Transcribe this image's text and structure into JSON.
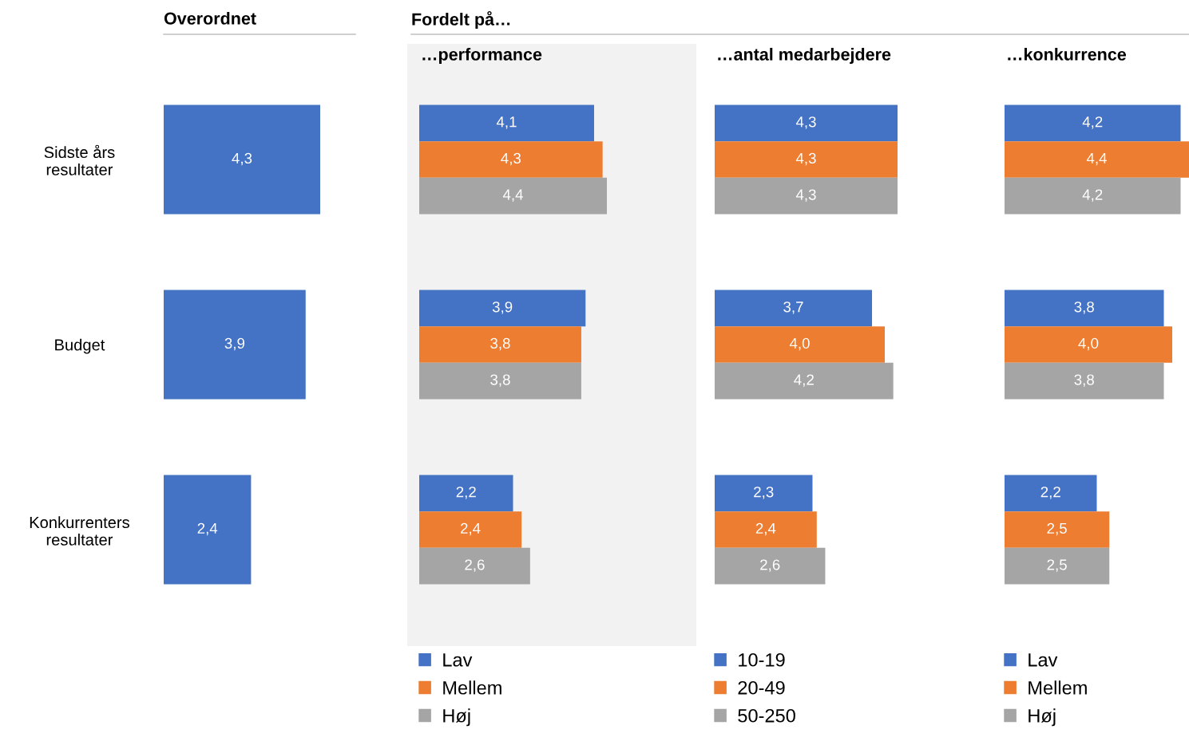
{
  "chart_data": [
    {
      "type": "bar",
      "orientation": "horizontal",
      "title": "Overordnet",
      "categories": [
        "Sidste års\nresultater",
        "Budget",
        "Konkurrenters\nresultater"
      ],
      "series": [
        {
          "color": "#4472c4",
          "values": [
            4.3,
            3.9,
            2.4
          ],
          "value_labels": [
            "4,3",
            "3,9",
            "2,4"
          ]
        }
      ],
      "grid": false,
      "legend": false
    },
    {
      "type": "bar",
      "orientation": "horizontal",
      "title": "…performance",
      "annotations": [
        "Fordelt på…"
      ],
      "categories": [
        null,
        null,
        null
      ],
      "grid": false,
      "legend": "bottom",
      "series": [
        {
          "name": "Lav",
          "color": "#4472c4",
          "values": [
            4.1,
            3.9,
            2.2
          ],
          "value_labels": [
            "4,1",
            "3,9",
            "2,2"
          ]
        },
        {
          "name": "Mellem",
          "color": "#ed7d31",
          "values": [
            4.3,
            3.8,
            2.4
          ],
          "value_labels": [
            "4,3",
            "3,8",
            "2,4"
          ]
        },
        {
          "name": "Høj",
          "color": "#a5a5a5",
          "values": [
            4.4,
            3.8,
            2.6
          ],
          "value_labels": [
            "4,4",
            "3,8",
            "2,6"
          ]
        }
      ]
    },
    {
      "type": "bar",
      "orientation": "horizontal",
      "title": "…antal medarbejdere",
      "categories": [
        null,
        null,
        null
      ],
      "grid": false,
      "legend": "bottom",
      "series": [
        {
          "name": "10-19",
          "color": "#4472c4",
          "values": [
            4.3,
            3.7,
            2.3
          ],
          "value_labels": [
            "4,3",
            "3,7",
            "2,3"
          ]
        },
        {
          "name": "20-49",
          "color": "#ed7d31",
          "values": [
            4.3,
            4.0,
            2.4
          ],
          "value_labels": [
            "4,3",
            "4,0",
            "2,4"
          ]
        },
        {
          "name": "50-250",
          "color": "#a5a5a5",
          "values": [
            4.3,
            4.2,
            2.6
          ],
          "value_labels": [
            "4,3",
            "4,2",
            "2,6"
          ]
        }
      ]
    },
    {
      "type": "bar",
      "orientation": "horizontal",
      "title": "…konkurrence",
      "categories": [
        null,
        null,
        null
      ],
      "grid": false,
      "legend": "bottom",
      "series": [
        {
          "name": "Lav",
          "color": "#4472c4",
          "values": [
            4.2,
            3.8,
            2.2
          ],
          "value_labels": [
            "4,2",
            "3,8",
            "2,2"
          ]
        },
        {
          "name": "Mellem",
          "color": "#ed7d31",
          "values": [
            4.4,
            4.0,
            2.5
          ],
          "value_labels": [
            "4,4",
            "4,0",
            "2,5"
          ]
        },
        {
          "name": "Høj",
          "color": "#a5a5a5",
          "values": [
            4.2,
            3.8,
            2.5
          ],
          "value_labels": [
            "4,2",
            "3,8",
            "2,5"
          ]
        }
      ]
    }
  ]
}
